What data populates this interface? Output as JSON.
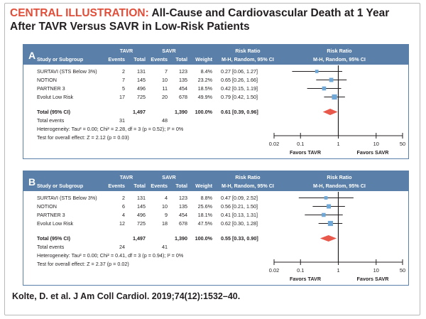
{
  "title": {
    "lead": "CENTRAL ILLUSTRATION:",
    "text": "All-Cause and Cardiovascular Death at 1 Year After TAVR Versus SAVR in Low-Risk Patients"
  },
  "header": {
    "study": "Study or Subgroup",
    "tavr": "TAVR",
    "savr": "SAVR",
    "events": "Events",
    "total": "Total",
    "weight": "Weight",
    "rr": "Risk Ratio",
    "rr_sub": "M-H, Random, 95% CI"
  },
  "chart_data": [
    {
      "type": "forest",
      "panel": "A",
      "studies": [
        {
          "name": "SURTAVI (STS Below 3%)",
          "tavr_events": 2,
          "tavr_total": 131,
          "savr_events": 7,
          "savr_total": 123,
          "weight": "8.4%",
          "rr_text": "0.27 [0.06, 1.27]",
          "rr": 0.27,
          "lo": 0.06,
          "hi": 1.27
        },
        {
          "name": "NOTION",
          "tavr_events": 7,
          "tavr_total": 145,
          "savr_events": 10,
          "savr_total": 135,
          "weight": "23.2%",
          "rr_text": "0.65 [0.26, 1.66]",
          "rr": 0.65,
          "lo": 0.26,
          "hi": 1.66
        },
        {
          "name": "PARTNER 3",
          "tavr_events": 5,
          "tavr_total": 496,
          "savr_events": 11,
          "savr_total": 454,
          "weight": "18.5%",
          "rr_text": "0.42 [0.15, 1.19]",
          "rr": 0.42,
          "lo": 0.15,
          "hi": 1.19
        },
        {
          "name": "Evolut Low Risk",
          "tavr_events": 17,
          "tavr_total": 725,
          "savr_events": 20,
          "savr_total": 678,
          "weight": "49.9%",
          "rr_text": "0.79 [0.42, 1.50]",
          "rr": 0.79,
          "lo": 0.42,
          "hi": 1.5
        }
      ],
      "total": {
        "name": "Total (95% CI)",
        "tavr_total": "1,497",
        "savr_total": "1,390",
        "weight": "100.0%",
        "rr_text": "0.61 [0.39, 0.96]",
        "rr": 0.61,
        "lo": 0.39,
        "hi": 0.96
      },
      "total_events": {
        "name": "Total events",
        "tavr": 31,
        "savr": 48
      },
      "heterogeneity": "Heterogeneity: Tau² = 0.00; Chi² = 2.28, df = 3 (p = 0.52); I² = 0%",
      "overall_test": "Test for overall effect: Z = 2.12 (p = 0.03)",
      "x_scale": "log",
      "x_ticks": [
        "0.02",
        "0.1",
        "1",
        "10",
        "50"
      ],
      "favors_left": "Favors TAVR",
      "favors_right": "Favors SAVR"
    },
    {
      "type": "forest",
      "panel": "B",
      "studies": [
        {
          "name": "SURTAVI (STS Below 3%)",
          "tavr_events": 2,
          "tavr_total": 131,
          "savr_events": 4,
          "savr_total": 123,
          "weight": "8.8%",
          "rr_text": "0.47 [0.09, 2.52]",
          "rr": 0.47,
          "lo": 0.09,
          "hi": 2.52
        },
        {
          "name": "NOTION",
          "tavr_events": 6,
          "tavr_total": 145,
          "savr_events": 10,
          "savr_total": 135,
          "weight": "25.6%",
          "rr_text": "0.56 [0.21, 1.50]",
          "rr": 0.56,
          "lo": 0.21,
          "hi": 1.5
        },
        {
          "name": "PARTNER 3",
          "tavr_events": 4,
          "tavr_total": 496,
          "savr_events": 9,
          "savr_total": 454,
          "weight": "18.1%",
          "rr_text": "0.41 [0.13, 1.31]",
          "rr": 0.41,
          "lo": 0.13,
          "hi": 1.31
        },
        {
          "name": "Evolut Low Risk",
          "tavr_events": 12,
          "tavr_total": 725,
          "savr_events": 18,
          "savr_total": 678,
          "weight": "47.5%",
          "rr_text": "0.62 [0.30, 1.28]",
          "rr": 0.62,
          "lo": 0.3,
          "hi": 1.28
        }
      ],
      "total": {
        "name": "Total (95% CI)",
        "tavr_total": "1,497",
        "savr_total": "1,390",
        "weight": "100.0%",
        "rr_text": "0.55 [0.33, 0.90]",
        "rr": 0.55,
        "lo": 0.33,
        "hi": 0.9
      },
      "total_events": {
        "name": "Total events",
        "tavr": 24,
        "savr": 41
      },
      "heterogeneity": "Heterogeneity: Tau² = 0.00; Chi² = 0.41, df = 3 (p = 0.94); I² = 0%",
      "overall_test": "Test for overall effect: Z = 2.37 (p = 0.02)",
      "x_scale": "log",
      "x_ticks": [
        "0.02",
        "0.1",
        "1",
        "10",
        "50"
      ],
      "favors_left": "Favors TAVR",
      "favors_right": "Favors SAVR"
    }
  ],
  "colors": {
    "header_bg": "#5a7fa8",
    "square": "#6fa8d6",
    "diamond": "#e8584b",
    "title_accent": "#e04e39"
  },
  "citation": "Kolte, D. et al. J Am Coll Cardiol. 2019;74(12):1532–40."
}
